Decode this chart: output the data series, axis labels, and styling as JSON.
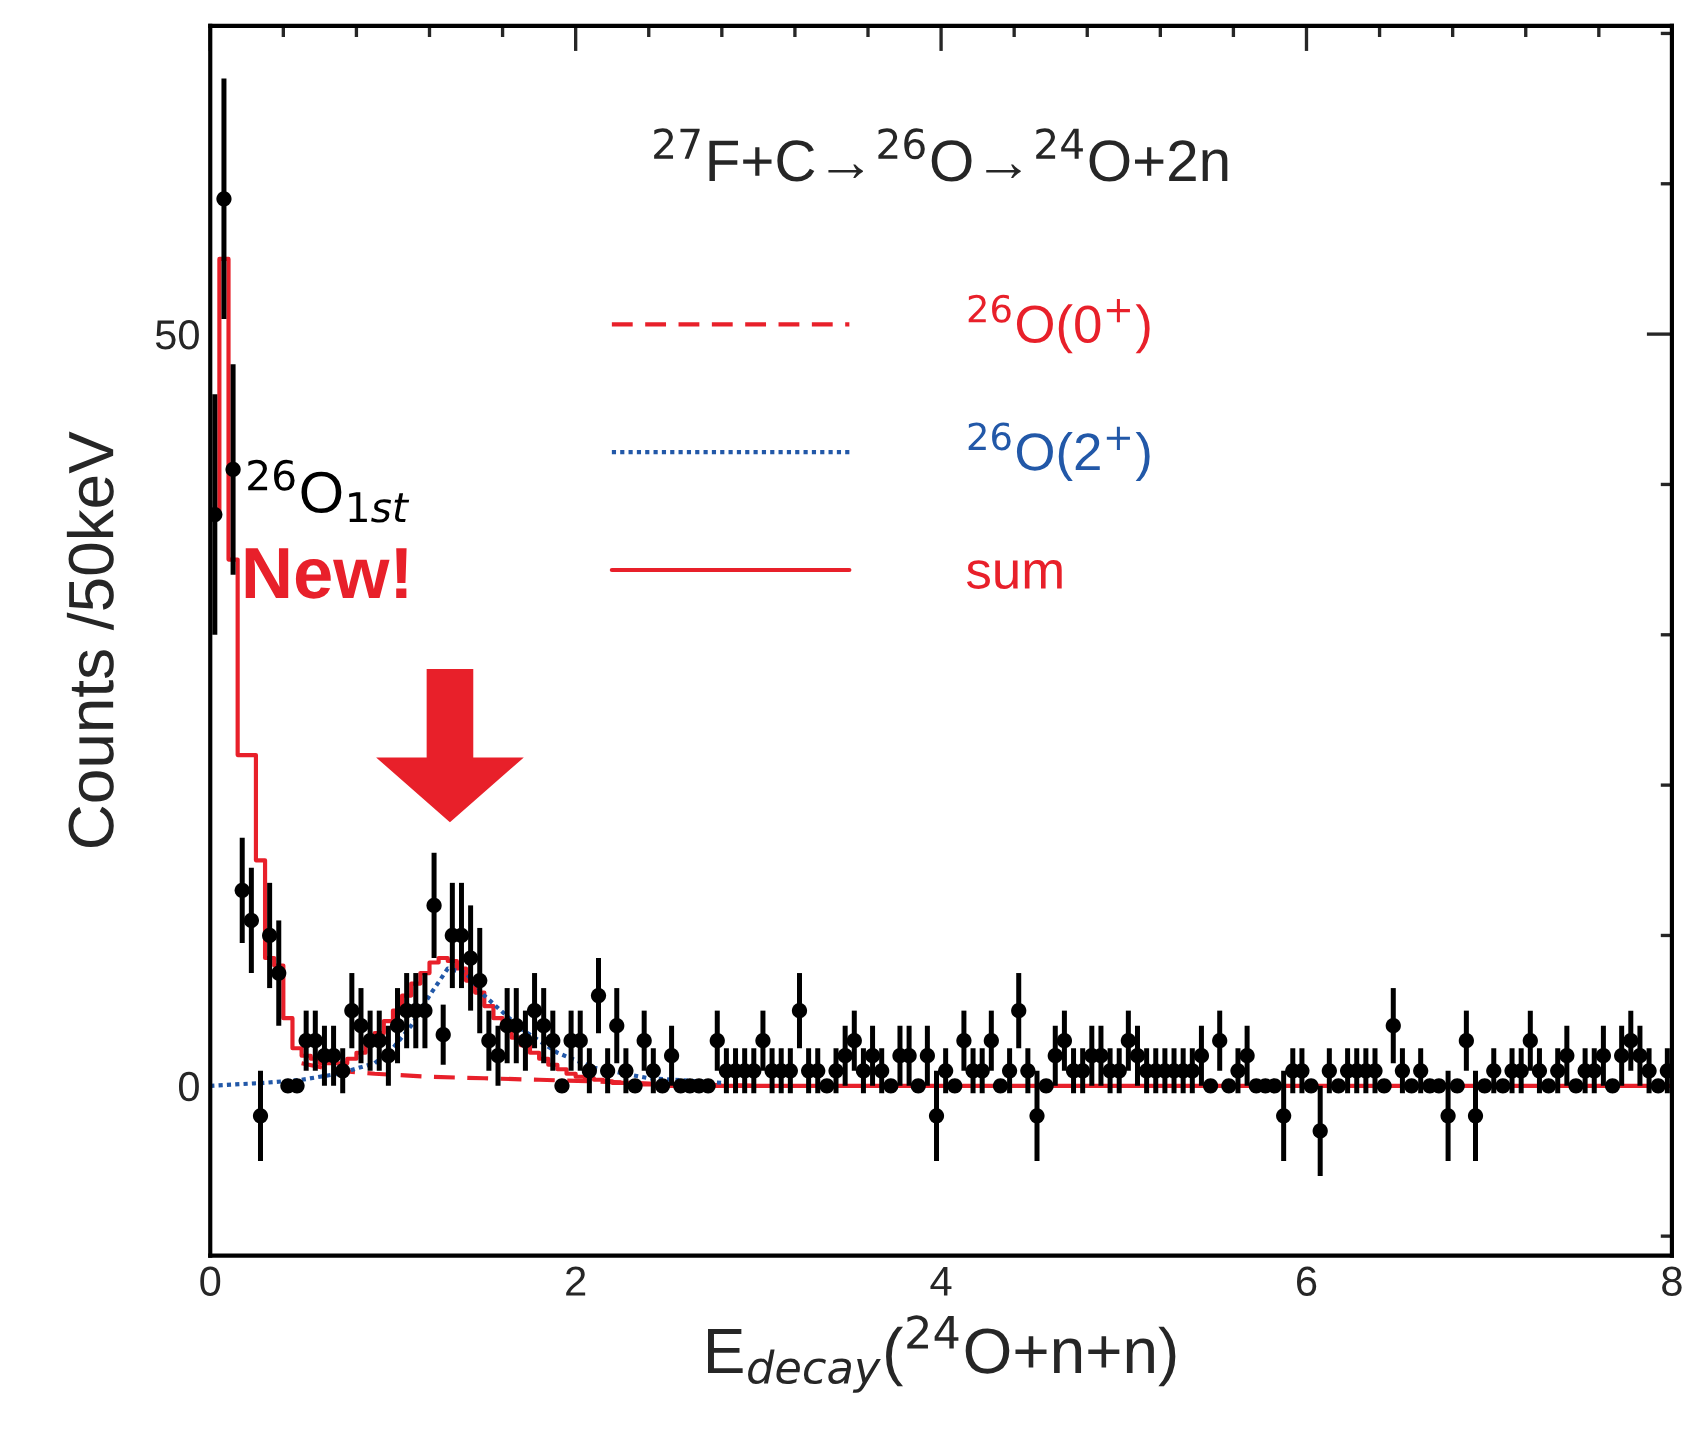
{
  "chart_data": {
    "type": "scatter",
    "title": "$^{27}$F+C→$^{26}$O→$^{24}$O+2n",
    "xlabel": "E$_{decay}$($^{24}$O+n+n)",
    "ylabel": "Counts /50keV",
    "annotations": [
      "$^{26}$O$_{1st}$",
      "New!"
    ],
    "xlim": [
      0,
      8
    ],
    "xticks": [
      0,
      2,
      4,
      6,
      8
    ],
    "ylim": [
      -11.3,
      70.5
    ],
    "yticks": [
      0,
      50
    ],
    "legend": "top",
    "marker": "circle",
    "series": [
      {
        "color": "#000000",
        "x": [
          0.025,
          0.075,
          0.125,
          0.175,
          0.225,
          0.275,
          0.325,
          0.375,
          0.425,
          0.475,
          0.525,
          0.575,
          0.625,
          0.675,
          0.725,
          0.775,
          0.825,
          0.875,
          0.925,
          0.975,
          1.025,
          1.075,
          1.125,
          1.175,
          1.225,
          1.275,
          1.325,
          1.375,
          1.425,
          1.475,
          1.525,
          1.575,
          1.625,
          1.675,
          1.725,
          1.775,
          1.825,
          1.875,
          1.925,
          1.975,
          2.025,
          2.075,
          2.125,
          2.175,
          2.225,
          2.275,
          2.325,
          2.375,
          2.425,
          2.475,
          2.525,
          2.575,
          2.625,
          2.675,
          2.725,
          2.775,
          2.825,
          2.875,
          2.925,
          2.975,
          3.025,
          3.075,
          3.125,
          3.175,
          3.225,
          3.275,
          3.325,
          3.375,
          3.425,
          3.475,
          3.525,
          3.575,
          3.625,
          3.675,
          3.725,
          3.775,
          3.825,
          3.875,
          3.925,
          3.975,
          4.025,
          4.075,
          4.125,
          4.175,
          4.225,
          4.275,
          4.325,
          4.375,
          4.425,
          4.475,
          4.525,
          4.575,
          4.625,
          4.675,
          4.725,
          4.775,
          4.825,
          4.875,
          4.925,
          4.975,
          5.025,
          5.075,
          5.125,
          5.175,
          5.225,
          5.275,
          5.325,
          5.375,
          5.425,
          5.475,
          5.525,
          5.575,
          5.625,
          5.675,
          5.725,
          5.775,
          5.825,
          5.875,
          5.925,
          5.975,
          6.025,
          6.075,
          6.125,
          6.175,
          6.225,
          6.275,
          6.325,
          6.375,
          6.425,
          6.475,
          6.525,
          6.575,
          6.625,
          6.675,
          6.725,
          6.775,
          6.825,
          6.875,
          6.925,
          6.975,
          7.025,
          7.075,
          7.125,
          7.175,
          7.225,
          7.275,
          7.325,
          7.375,
          7.425,
          7.475,
          7.525,
          7.575,
          7.625,
          7.675,
          7.725,
          7.775,
          7.825,
          7.875,
          7.925,
          7.975
        ],
        "values": [
          38,
          59,
          41,
          13,
          11,
          -2,
          10,
          7.5,
          0,
          0,
          3,
          3,
          2,
          2,
          1,
          5,
          4,
          3,
          3,
          2,
          4,
          5,
          5,
          5,
          12,
          3.4,
          10,
          10,
          8.5,
          7,
          3,
          2,
          4,
          4,
          3,
          5,
          4,
          3,
          0,
          3,
          3,
          1,
          6,
          1,
          4,
          1,
          0,
          3,
          1,
          0,
          2,
          0,
          0,
          0,
          0,
          3,
          1,
          1,
          1,
          1,
          3,
          1,
          1,
          1,
          5,
          1,
          1,
          0,
          1,
          2,
          3,
          1,
          2,
          1,
          0,
          2,
          2,
          0,
          2,
          -2,
          1,
          0,
          3,
          1,
          1,
          3,
          0,
          1,
          5,
          1,
          -2,
          0,
          2,
          3,
          1,
          1,
          2,
          2,
          1,
          1,
          3,
          2,
          1,
          1,
          1,
          1,
          1,
          1,
          2,
          0,
          3,
          0,
          1,
          2,
          0,
          0,
          0,
          -2,
          1,
          1,
          0,
          -3,
          1,
          0,
          1,
          1,
          1,
          1,
          0,
          4,
          1,
          0,
          1,
          0,
          0,
          -2,
          0,
          3,
          -2,
          0,
          1,
          0,
          1,
          1,
          3,
          1,
          0,
          1,
          2,
          0,
          1,
          1,
          2,
          0,
          2,
          3,
          2,
          1,
          0,
          1
        ],
        "errors": [
          8,
          8,
          7,
          3.5,
          3.5,
          3,
          3.5,
          3.5,
          null,
          null,
          2,
          2,
          2,
          2,
          1.5,
          2.5,
          2.5,
          2,
          2,
          2,
          2.5,
          2.5,
          2.5,
          2.5,
          3.5,
          2,
          3.5,
          3.5,
          3.5,
          3.5,
          2,
          2,
          2.5,
          2.5,
          2,
          2.5,
          2.5,
          2,
          null,
          2,
          2,
          1.5,
          2.5,
          1.5,
          2.5,
          1.5,
          null,
          2,
          1.5,
          null,
          2,
          null,
          null,
          null,
          null,
          2,
          1.5,
          1.5,
          1.5,
          1.5,
          2,
          1.5,
          1.5,
          1.5,
          2.5,
          1.5,
          1.5,
          null,
          1.5,
          2,
          2,
          1.5,
          2,
          1.5,
          null,
          2,
          2,
          null,
          2,
          3,
          1.5,
          null,
          2,
          1.5,
          1.5,
          2,
          null,
          1.5,
          2.5,
          1.5,
          3,
          null,
          2,
          2,
          1.5,
          1.5,
          2,
          2,
          1.5,
          1.5,
          2,
          2,
          1.5,
          1.5,
          1.5,
          1.5,
          1.5,
          1.5,
          2,
          null,
          2,
          null,
          1.5,
          2,
          null,
          null,
          null,
          3,
          1.5,
          1.5,
          null,
          3,
          1.5,
          null,
          1.5,
          1.5,
          1.5,
          1.5,
          null,
          2.5,
          1.5,
          null,
          1.5,
          null,
          null,
          3,
          null,
          2,
          3,
          null,
          1.5,
          null,
          1.5,
          1.5,
          2,
          1.5,
          null,
          1.5,
          2,
          null,
          1.5,
          1.5,
          2,
          null,
          2,
          2,
          2,
          1.5,
          null,
          1.5
        ]
      },
      {
        "type": "line",
        "name": "$^{26}$O(0$^{+}$)",
        "color": "#e8202a",
        "line_style": "dashed",
        "marker": "none",
        "x": [
          0.5,
          0.7,
          0.9,
          1.2,
          1.5,
          1.8,
          2.1,
          2.5,
          3.0
        ],
        "values": [
          1.5,
          1,
          0.8,
          0.6,
          0.5,
          0.4,
          0.3,
          0.1,
          0
        ]
      },
      {
        "type": "line",
        "name": "$^{26}$O(2$^{+}$)",
        "color": "#2258a8",
        "line_style": "dotted",
        "marker": "none",
        "x": [
          0,
          0.3,
          0.5,
          0.7,
          0.9,
          1.0,
          1.1,
          1.2,
          1.3,
          1.4,
          1.5,
          1.7,
          1.9,
          2.1,
          2.4,
          2.8
        ],
        "values": [
          0,
          0.2,
          0.4,
          0.8,
          1.5,
          2.5,
          4,
          6,
          7.8,
          7.5,
          6,
          3.8,
          2.2,
          1.2,
          0.5,
          0.2
        ]
      },
      {
        "type": "step",
        "name": "sum",
        "color": "#e8202a",
        "line_style": "solid",
        "marker": "none",
        "x": [
          0,
          0.05,
          0.1,
          0.15,
          0.2,
          0.25,
          0.3,
          0.35,
          0.4,
          0.45,
          0.5,
          0.55,
          0.6,
          0.65,
          0.7,
          0.75,
          0.8,
          0.85,
          0.9,
          0.95,
          1.0,
          1.05,
          1.1,
          1.15,
          1.2,
          1.25,
          1.3,
          1.35,
          1.4,
          1.45,
          1.5,
          1.55,
          1.6,
          1.65,
          1.7,
          1.75,
          1.8,
          1.85,
          1.9,
          1.95,
          2.0,
          2.05,
          2.1,
          2.15,
          2.2,
          2.25,
          2.3,
          2.35,
          2.4,
          2.45,
          8.0
        ],
        "values": [
          38,
          55,
          35,
          22,
          22,
          15,
          8.5,
          8,
          4.5,
          2.5,
          2,
          1.8,
          1.5,
          1.5,
          1.5,
          1.8,
          2.2,
          2.8,
          3.5,
          4.3,
          5,
          6,
          6.8,
          7.5,
          8.2,
          8.5,
          8.3,
          7.8,
          7,
          6.2,
          5.3,
          4.5,
          3.8,
          3.2,
          2.7,
          2.2,
          1.8,
          1.4,
          1.1,
          0.8,
          0.6,
          0.5,
          0.4,
          0.3,
          0.2,
          0.2,
          0.1,
          0.1,
          0.1,
          0,
          0
        ]
      }
    ]
  }
}
